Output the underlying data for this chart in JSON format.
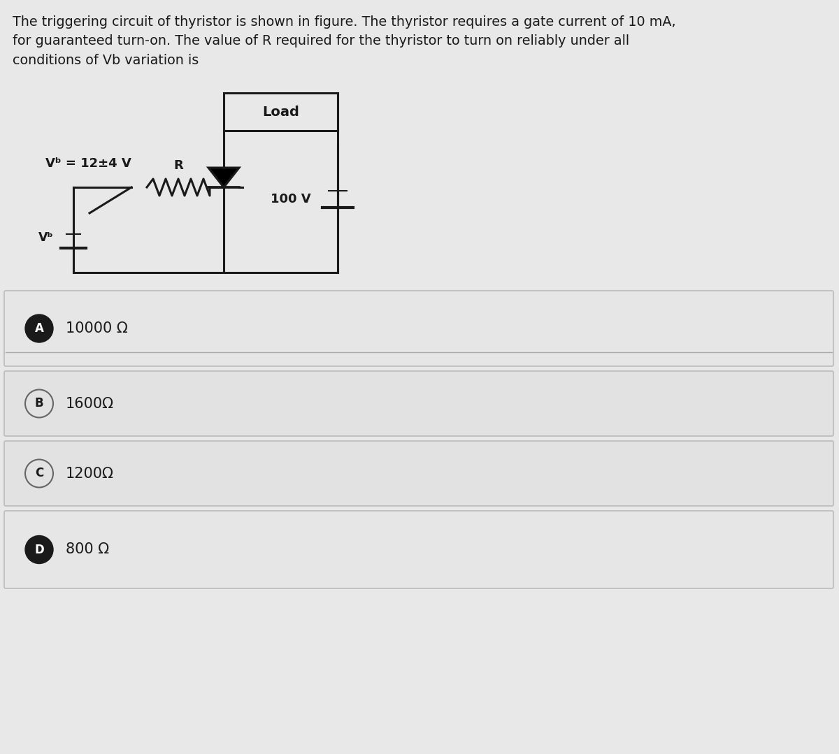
{
  "title_text": "The triggering circuit of thyristor is shown in figure. The thyristor requires a gate current of 10 mA,\nfor guaranteed turn-on. The value of R required for the thyristor to turn on reliably under all\nconditions of Vb variation is",
  "bg_color": "#e8e8e8",
  "vb_label": "Vᵇ = 12±4 V",
  "vs_label": "Vᵇ",
  "r_label": "R",
  "load_label": "Load",
  "v100_label": "100 V",
  "options": [
    {
      "letter": "A",
      "text": "10000 Ω",
      "filled": true
    },
    {
      "letter": "B",
      "text": "1600Ω",
      "filled": false
    },
    {
      "letter": "C",
      "text": "1200Ω",
      "filled": false
    },
    {
      "letter": "D",
      "text": "800 Ω",
      "filled": true
    }
  ],
  "text_color": "#1a1a1a",
  "line_color": "#1a1a1a",
  "option_border_color": "#bbbbbb",
  "circle_filled_color": "#1a1a1a",
  "circle_empty_border": "#666666"
}
